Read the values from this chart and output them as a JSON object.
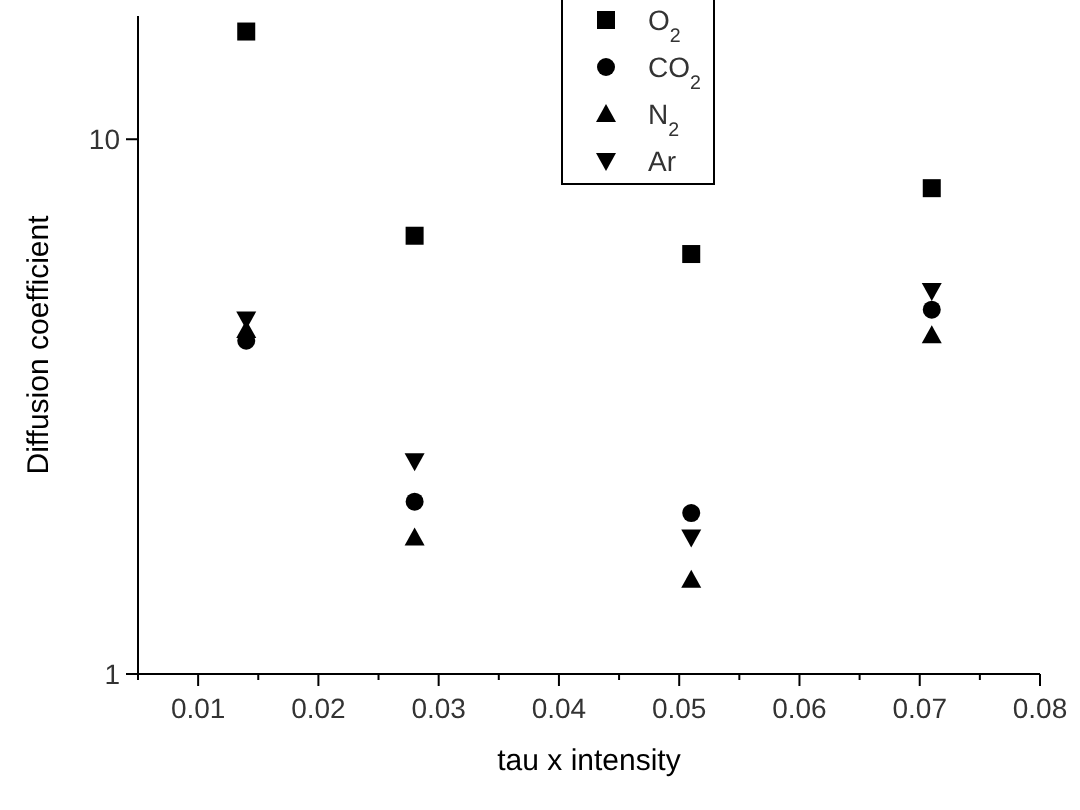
{
  "chart_data": {
    "type": "scatter",
    "xlabel": "tau x intensity",
    "ylabel": "Diffusion coefficient",
    "log": "y",
    "x": [
      0.014,
      0.028,
      0.051,
      0.071
    ],
    "series": [
      {
        "name": "O$_{2}$",
        "color": "#000000",
        "marker": "square",
        "values": [
          15.9,
          6.6,
          6.1,
          8.1
        ]
      },
      {
        "name": "CO$_{2}$",
        "color": "#000000",
        "marker": "circle",
        "values": [
          4.2,
          2.1,
          2.0,
          4.8
        ]
      },
      {
        "name": "N$_{2}$",
        "color": "#000000",
        "marker": "triangle",
        "values": [
          4.4,
          1.8,
          1.5,
          4.3
        ]
      },
      {
        "name": "Ar",
        "color": "#000000",
        "marker": "triangle-down",
        "values": [
          4.6,
          2.5,
          1.8,
          5.2
        ]
      }
    ],
    "xlim": [
      0.005,
      0.08
    ],
    "xticks": [
      {
        "value": 0.005,
        "label": null
      },
      0.01,
      {
        "value": 0.015,
        "label": null
      },
      0.02,
      {
        "value": 0.025,
        "label": null
      },
      0.03,
      {
        "value": 0.035,
        "label": null
      },
      0.04,
      {
        "value": 0.045,
        "label": null
      },
      0.05,
      {
        "value": 0.055,
        "label": null
      },
      0.06,
      {
        "value": 0.065,
        "label": null
      },
      0.07,
      {
        "value": 0.075,
        "label": null
      },
      0.08
    ],
    "ylim": [
      1,
      17
    ],
    "yticks": [
      1,
      10
    ],
    "grid": false,
    "legend": "top"
  }
}
